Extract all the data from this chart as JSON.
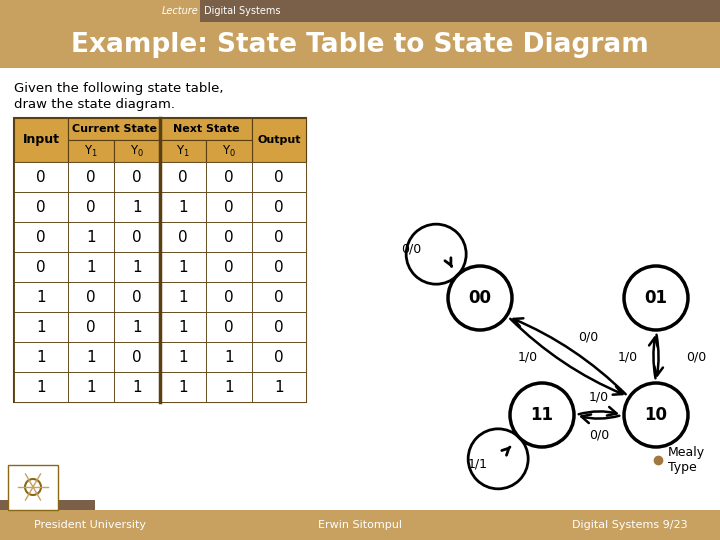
{
  "title_bar_color1": "#c8a060",
  "title_bar_color2": "#7a6048",
  "header_color": "#c8a060",
  "slide_bg": "#ffffff",
  "title_text": "Example: State Table to State Diagram",
  "subtitle_text1": "Given the following state table,",
  "subtitle_text2": "draw the state diagram.",
  "lecture_label": "Lecture",
  "course_label": "Digital Systems",
  "footer_left": "President University",
  "footer_mid": "Erwin Sitompul",
  "footer_right": "Digital Systems 9/23",
  "table_header_bg": "#d4a040",
  "table_border_color": "#5a4010",
  "table_data": [
    [
      0,
      0,
      0,
      0,
      0,
      0
    ],
    [
      0,
      0,
      1,
      1,
      0,
      0
    ],
    [
      0,
      1,
      0,
      0,
      0,
      0
    ],
    [
      0,
      1,
      1,
      1,
      0,
      0
    ],
    [
      1,
      0,
      0,
      1,
      0,
      0
    ],
    [
      1,
      0,
      1,
      1,
      0,
      0
    ],
    [
      1,
      1,
      0,
      1,
      1,
      0
    ],
    [
      1,
      1,
      1,
      1,
      1,
      1
    ]
  ],
  "mealy_dot_color": "#a07840",
  "footer_bg": "#c8a060"
}
